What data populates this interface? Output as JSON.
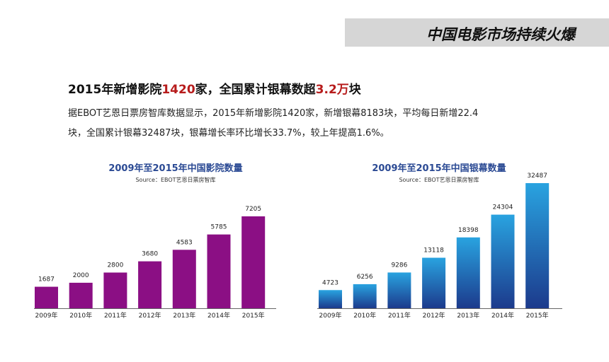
{
  "header": {
    "title": "中国电影市场持续火爆"
  },
  "headline": {
    "part1": "2015年新增影院",
    "highlight1": "1420",
    "part2": "家，全国累计银幕数超",
    "highlight2": "3.2万",
    "part3": "块"
  },
  "paragraph": {
    "line1": "据EBOT艺恩日票房智库数据显示，2015年新增影院1420家，新增银幕8183块，平均每日新增22.4",
    "line2": "块，全国累计银幕32487块，银幕增长率环比增长33.7%，较上年提高1.6%。"
  },
  "chart_data": [
    {
      "type": "bar",
      "title": "2009年至2015年中国影院数量",
      "source": "Source：EBOT艺恩日票房智库",
      "categories": [
        "2009年",
        "2010年",
        "2011年",
        "2012年",
        "2013年",
        "2014年",
        "2015年"
      ],
      "values": [
        1687,
        2000,
        2800,
        3680,
        4583,
        5785,
        7205
      ],
      "color": "#8b0f84",
      "grid": false
    },
    {
      "type": "bar",
      "title": "2009年至2015年中国银幕数量",
      "source": "Source：EBOT艺恩日票房智库",
      "categories": [
        "2009年",
        "2010年",
        "2011年",
        "2012年",
        "2013年",
        "2014年",
        "2015年"
      ],
      "values": [
        4723,
        6256,
        9286,
        13118,
        18398,
        24304,
        32487
      ],
      "color_top": "#29a3e0",
      "color_bottom": "#1c3a8c",
      "grid": false
    }
  ]
}
